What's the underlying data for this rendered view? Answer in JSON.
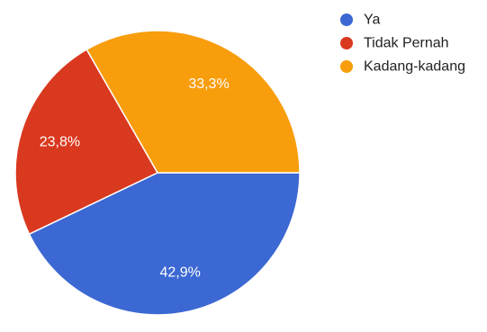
{
  "chart_data": {
    "type": "pie",
    "slices": [
      {
        "label": "Ya",
        "value": 42.9,
        "display": "42,9%",
        "color": "#3c68d3"
      },
      {
        "label": "Tidak Pernah",
        "value": 23.8,
        "display": "23,8%",
        "color": "#d9391f"
      },
      {
        "label": "Kadang-kadang",
        "value": 33.3,
        "display": "33,3%",
        "color": "#f89d0b"
      }
    ],
    "start": "3 o'clock",
    "direction": "clockwise",
    "legend_position": "right"
  }
}
